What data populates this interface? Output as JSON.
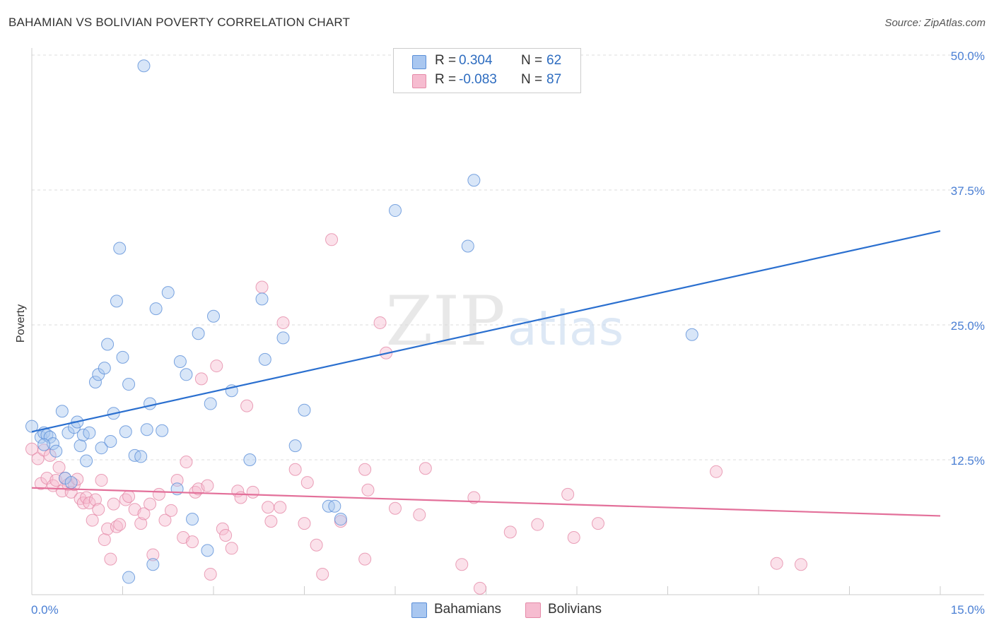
{
  "title": "BAHAMIAN VS BOLIVIAN POVERTY CORRELATION CHART",
  "source": "Source: ZipAtlas.com",
  "watermark": {
    "zip": "ZIP",
    "atlas": "atlas"
  },
  "legend": {
    "r_label": "R =",
    "n_label": "N =",
    "bahamians": {
      "r": "0.304",
      "n": "62"
    },
    "bolivians": {
      "r": "-0.083",
      "n": "87"
    }
  },
  "colors": {
    "bahamian_fill": "#a9c7f0",
    "bahamian_stroke": "#5b8fd8",
    "bahamian_line": "#2a6fcf",
    "bolivian_fill": "#f6bcd0",
    "bolivian_stroke": "#e58aa8",
    "bolivian_line": "#e3709a",
    "tick_text": "#4a7fd4",
    "grid": "#dddddd"
  },
  "chart_data": {
    "type": "scatter",
    "title": "BAHAMIAN VS BOLIVIAN POVERTY CORRELATION CHART",
    "xlabel": "",
    "ylabel": "Poverty",
    "xlim": [
      0,
      15
    ],
    "ylim": [
      0,
      50
    ],
    "x_tick_labels": [
      "0.0%",
      "15.0%"
    ],
    "y_ticks": [
      12.5,
      25.0,
      37.5,
      50.0
    ],
    "y_tick_labels": [
      "12.5%",
      "25.0%",
      "37.5%",
      "50.0%"
    ],
    "legend_position": "top-center",
    "series": [
      {
        "name": "Bahamians",
        "r": 0.304,
        "n": 62,
        "trend": {
          "x": [
            0,
            15
          ],
          "y": [
            15.1,
            33.7
          ]
        },
        "points": [
          [
            0.0,
            15.6
          ],
          [
            0.15,
            14.6
          ],
          [
            0.2,
            15.0
          ],
          [
            0.25,
            14.8
          ],
          [
            0.3,
            14.6
          ],
          [
            0.35,
            14.0
          ],
          [
            0.4,
            13.3
          ],
          [
            0.5,
            17.0
          ],
          [
            0.55,
            10.8
          ],
          [
            0.6,
            15.0
          ],
          [
            0.65,
            10.4
          ],
          [
            0.7,
            15.5
          ],
          [
            0.75,
            16.0
          ],
          [
            0.8,
            13.8
          ],
          [
            0.85,
            14.8
          ],
          [
            0.9,
            12.4
          ],
          [
            0.95,
            15.0
          ],
          [
            1.05,
            19.7
          ],
          [
            1.1,
            20.4
          ],
          [
            1.15,
            13.6
          ],
          [
            1.2,
            21.0
          ],
          [
            1.25,
            23.2
          ],
          [
            1.3,
            14.2
          ],
          [
            1.35,
            16.8
          ],
          [
            1.4,
            27.2
          ],
          [
            1.45,
            32.1
          ],
          [
            1.5,
            22.0
          ],
          [
            1.55,
            15.1
          ],
          [
            1.6,
            19.5
          ],
          [
            1.7,
            12.9
          ],
          [
            1.8,
            12.8
          ],
          [
            1.85,
            49.0
          ],
          [
            1.9,
            15.3
          ],
          [
            1.95,
            17.7
          ],
          [
            2.0,
            2.8
          ],
          [
            2.05,
            26.5
          ],
          [
            2.15,
            15.2
          ],
          [
            2.25,
            28.0
          ],
          [
            2.4,
            9.8
          ],
          [
            2.45,
            21.6
          ],
          [
            2.55,
            20.4
          ],
          [
            2.65,
            7.0
          ],
          [
            2.75,
            24.2
          ],
          [
            2.9,
            4.1
          ],
          [
            2.95,
            17.7
          ],
          [
            3.0,
            25.8
          ],
          [
            3.3,
            18.9
          ],
          [
            3.6,
            12.5
          ],
          [
            3.8,
            27.4
          ],
          [
            3.85,
            21.8
          ],
          [
            4.15,
            23.8
          ],
          [
            4.35,
            13.8
          ],
          [
            4.5,
            17.1
          ],
          [
            4.9,
            8.2
          ],
          [
            5.0,
            8.2
          ],
          [
            5.1,
            7.0
          ],
          [
            6.0,
            35.6
          ],
          [
            7.2,
            32.3
          ],
          [
            7.3,
            38.4
          ],
          [
            10.9,
            24.1
          ],
          [
            1.6,
            1.6
          ],
          [
            0.2,
            13.9
          ]
        ]
      },
      {
        "name": "Bolivians",
        "r": -0.083,
        "n": 87,
        "trend": {
          "x": [
            0,
            15
          ],
          "y": [
            9.9,
            7.3
          ]
        },
        "points": [
          [
            0.0,
            13.5
          ],
          [
            0.1,
            12.6
          ],
          [
            0.15,
            10.3
          ],
          [
            0.2,
            13.4
          ],
          [
            0.25,
            10.8
          ],
          [
            0.3,
            12.9
          ],
          [
            0.35,
            10.1
          ],
          [
            0.4,
            10.6
          ],
          [
            0.45,
            11.8
          ],
          [
            0.5,
            9.6
          ],
          [
            0.55,
            10.8
          ],
          [
            0.6,
            10.2
          ],
          [
            0.65,
            9.5
          ],
          [
            0.7,
            10.2
          ],
          [
            0.75,
            10.7
          ],
          [
            0.8,
            8.9
          ],
          [
            0.85,
            8.5
          ],
          [
            0.9,
            9.0
          ],
          [
            0.95,
            8.5
          ],
          [
            1.0,
            6.9
          ],
          [
            1.05,
            8.8
          ],
          [
            1.1,
            7.9
          ],
          [
            1.15,
            10.6
          ],
          [
            1.2,
            5.1
          ],
          [
            1.25,
            6.1
          ],
          [
            1.3,
            3.3
          ],
          [
            1.35,
            8.4
          ],
          [
            1.4,
            6.3
          ],
          [
            1.45,
            6.5
          ],
          [
            1.55,
            8.8
          ],
          [
            1.6,
            9.1
          ],
          [
            1.7,
            7.9
          ],
          [
            1.8,
            6.6
          ],
          [
            1.85,
            7.5
          ],
          [
            1.95,
            8.4
          ],
          [
            2.0,
            3.7
          ],
          [
            2.1,
            9.3
          ],
          [
            2.2,
            6.9
          ],
          [
            2.3,
            7.8
          ],
          [
            2.4,
            10.6
          ],
          [
            2.5,
            5.3
          ],
          [
            2.55,
            12.3
          ],
          [
            2.65,
            4.9
          ],
          [
            2.7,
            9.5
          ],
          [
            2.75,
            9.8
          ],
          [
            2.8,
            20.0
          ],
          [
            2.9,
            10.1
          ],
          [
            2.95,
            1.9
          ],
          [
            3.05,
            21.2
          ],
          [
            3.15,
            6.1
          ],
          [
            3.2,
            5.5
          ],
          [
            3.3,
            4.3
          ],
          [
            3.4,
            9.6
          ],
          [
            3.45,
            9.0
          ],
          [
            3.55,
            17.5
          ],
          [
            3.65,
            9.5
          ],
          [
            3.8,
            28.5
          ],
          [
            3.9,
            8.1
          ],
          [
            3.95,
            6.8
          ],
          [
            4.1,
            8.1
          ],
          [
            4.15,
            25.2
          ],
          [
            4.35,
            11.6
          ],
          [
            4.5,
            6.6
          ],
          [
            4.55,
            10.4
          ],
          [
            4.7,
            4.6
          ],
          [
            4.8,
            1.9
          ],
          [
            4.95,
            32.9
          ],
          [
            5.1,
            6.8
          ],
          [
            5.5,
            11.6
          ],
          [
            5.5,
            3.3
          ],
          [
            5.55,
            9.7
          ],
          [
            5.75,
            25.2
          ],
          [
            5.85,
            22.4
          ],
          [
            6.0,
            8.0
          ],
          [
            6.4,
            7.4
          ],
          [
            6.5,
            11.7
          ],
          [
            7.1,
            2.8
          ],
          [
            7.4,
            0.6
          ],
          [
            7.9,
            5.8
          ],
          [
            8.35,
            6.5
          ],
          [
            8.85,
            9.3
          ],
          [
            8.95,
            5.3
          ],
          [
            9.35,
            6.6
          ],
          [
            11.3,
            11.4
          ],
          [
            12.3,
            2.9
          ],
          [
            12.7,
            2.8
          ],
          [
            7.3,
            9.0
          ]
        ]
      }
    ]
  }
}
